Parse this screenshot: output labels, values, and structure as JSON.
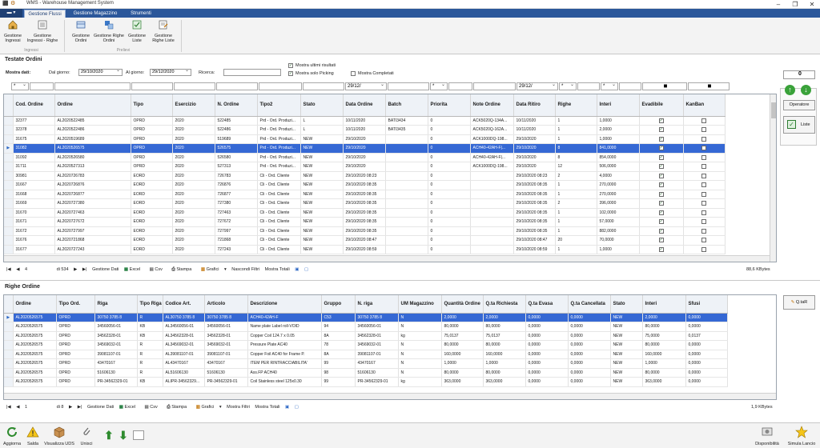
{
  "window": {
    "title": "WMS - Warehouse Management System"
  },
  "tabs": [
    {
      "label": "Gestione Flussi",
      "selected": true
    },
    {
      "label": "Gestione Magazzino",
      "selected": false
    },
    {
      "label": "Strumenti",
      "selected": false
    }
  ],
  "ribbon": {
    "groups": [
      {
        "label": "Ingressi"
      },
      {
        "label": "Prelievi"
      }
    ],
    "buttons": [
      {
        "label": "Gestione Ingressi",
        "icon": "home-icon"
      },
      {
        "label": "Gestione Ingressi - Righe",
        "icon": "list-icon"
      },
      {
        "label": "Gestione Ordini",
        "icon": "orders-icon"
      },
      {
        "label": "Gestione Righe Ordini",
        "icon": "order-lines-icon"
      },
      {
        "label": "Gestione Liste",
        "icon": "checklist-icon"
      },
      {
        "label": "Gestione Righe Liste",
        "icon": "list-lines-icon"
      }
    ]
  },
  "filters": {
    "section_title": "Testate Ordini",
    "mostra_dati": "Mostra dati:",
    "dal_label": "Dal giorno:",
    "dal_value": "29/10/2020",
    "al_label": "Al giorno:",
    "al_value": "29/12/2020",
    "ricerca_label": "Ricerca:",
    "ricerca_value": "",
    "ultimi": "Mostra ultimi risultati",
    "solo_picking": "Mostra solo Picking",
    "completati": "Mostra Completati",
    "ultimi_checked": true,
    "solo_picking_checked": true,
    "completati_checked": false,
    "row_ops": [
      "*",
      "*",
      "*"
    ],
    "row_dates": [
      "29/12/",
      "29/12/"
    ]
  },
  "side": {
    "counter": "0",
    "operatore": "Operatore",
    "liste": "Liste",
    "qtar": "Q.taR"
  },
  "orders": {
    "columns": [
      "Cod. Ordine",
      "Ordine",
      "Tipo",
      "Esercizio",
      "N. Ordine",
      "Tipo2",
      "Stato",
      "Data Ordine",
      "Batch",
      "Priorita",
      "Note Ordine",
      "Data Ritiro",
      "Righe",
      "Interi",
      "Evadibile",
      "KanBan"
    ],
    "rows": [
      [
        "32377",
        "AL2020522485",
        "OPRD",
        "2020",
        "522485",
        "Prd - Ord. Produzi...",
        "L",
        "10/11/2020",
        "BATI3434",
        "0",
        "ACK5020Q-134A...",
        "10/11/2020",
        "1",
        "1,0000",
        true,
        false
      ],
      [
        "32378",
        "AL2020522486",
        "OPRD",
        "2020",
        "522486",
        "Prd - Ord. Produzi...",
        "L",
        "10/11/2020",
        "BATI3435",
        "0",
        "ACK5020Q-162A...",
        "10/11/2020",
        "1",
        "2,0000",
        true,
        false
      ],
      [
        "31675",
        "AL2020519689",
        "OPRD",
        "2020",
        "519689",
        "Prd - Ord. Produzi...",
        "NEW",
        "29/10/2020",
        "",
        "0",
        "ACK1000DQ-198...",
        "29/10/2020",
        "1",
        "1,0000",
        true,
        false
      ],
      [
        "31082",
        "AL2020526575",
        "OPRD",
        "2020",
        "526575",
        "Prd - Ord. Produzi...",
        "NEW",
        "29/10/2020",
        "",
        "0",
        "ACH40-42AH-F|...",
        "29/10/2020",
        "8",
        "841,0000",
        true,
        false
      ],
      [
        "31092",
        "AL2020526580",
        "OPRD",
        "2020",
        "526580",
        "Prd - Ord. Produzi...",
        "NEW",
        "29/10/2020",
        "",
        "0",
        "ACH40-42AH-F|...",
        "29/10/2020",
        "8",
        "854,0000",
        true,
        false
      ],
      [
        "31711",
        "AL2020527313",
        "OPRD",
        "2020",
        "527313",
        "Prd - Ord. Produzi...",
        "NEW",
        "29/10/2020",
        "",
        "0",
        "ACK1000DQ-198...",
        "29/10/2020",
        "12",
        "506,0000",
        true,
        false
      ],
      [
        "30981",
        "AL2020726783",
        "EORD",
        "2020",
        "726783",
        "Cli - Ord. Cliente",
        "NEW",
        "29/10/2020 08:23",
        "",
        "0",
        "",
        "29/10/2020 08:23",
        "2",
        "4,0000",
        true,
        false
      ],
      [
        "31667",
        "AL2020726876",
        "EORD",
        "2020",
        "726876",
        "Cli - Ord. Cliente",
        "NEW",
        "29/10/2020 08:35",
        "",
        "0",
        "",
        "29/10/2020 08:35",
        "1",
        "270,0000",
        true,
        false
      ],
      [
        "31668",
        "AL2020726877",
        "EORD",
        "2020",
        "726877",
        "Cli - Ord. Cliente",
        "NEW",
        "29/10/2020 08:35",
        "",
        "0",
        "",
        "29/10/2020 08:35",
        "1",
        "270,0000",
        true,
        false
      ],
      [
        "31669",
        "AL2020727380",
        "EORD",
        "2020",
        "727380",
        "Cli - Ord. Cliente",
        "NEW",
        "29/10/2020 08:35",
        "",
        "0",
        "",
        "29/10/2020 08:35",
        "2",
        "396,0000",
        true,
        false
      ],
      [
        "31670",
        "AL2020727463",
        "EORD",
        "2020",
        "727463",
        "Cli - Ord. Cliente",
        "NEW",
        "29/10/2020 08:35",
        "",
        "0",
        "",
        "29/10/2020 08:35",
        "1",
        "102,0000",
        true,
        false
      ],
      [
        "31671",
        "AL2020727672",
        "EORD",
        "2020",
        "727672",
        "Cli - Ord. Cliente",
        "NEW",
        "29/10/2020 08:35",
        "",
        "0",
        "",
        "29/10/2020 08:35",
        "1",
        "57,0000",
        true,
        false
      ],
      [
        "31672",
        "AL2020727997",
        "EORD",
        "2020",
        "727997",
        "Cli - Ord. Cliente",
        "NEW",
        "29/10/2020 08:35",
        "",
        "0",
        "",
        "29/10/2020 08:35",
        "1",
        "882,0000",
        true,
        false
      ],
      [
        "31676",
        "AL2020721868",
        "EORD",
        "2020",
        "721868",
        "Cli - Ord. Cliente",
        "NEW",
        "29/10/2020 08:47",
        "",
        "0",
        "",
        "29/10/2020 08:47",
        "20",
        "70,0000",
        true,
        false
      ],
      [
        "31677",
        "AL2020727243",
        "EORD",
        "2020",
        "727243",
        "Cli - Ord. Cliente",
        "NEW",
        "29/10/2020 08:59",
        "",
        "0",
        "",
        "29/10/2020 08:59",
        "1",
        "1,0000",
        true,
        false
      ]
    ],
    "selected_index": 3
  },
  "orders_nav": {
    "page": "4",
    "of": "di 534",
    "items": [
      "Gestione Dati",
      "Excel",
      "Csv",
      "Stampa",
      "Grafici",
      "Nascondi Filtri",
      "Mostra Totali"
    ],
    "size": "88,6 KBytes"
  },
  "lines": {
    "section_title": "Righe Ordine",
    "columns": [
      "Ordine",
      "Tipo Ord.",
      "Riga",
      "Tipo Riga",
      "Codice Art.",
      "Articolo",
      "Descrizione",
      "Gruppo",
      "N. riga",
      "UM Magazzino",
      "Quantità Ordine",
      "Q.ta Richiesta",
      "Q.ta Evasa",
      "Q.ta Cancellata",
      "Stato",
      "Interi",
      "Sfusi"
    ],
    "rows": [
      [
        "AL2020526575",
        "OPRD",
        "30750 3785 8",
        "R",
        "AL30750 3785 8",
        "30750 3785 8",
        "ACH40-42AH-F",
        "C53",
        "30750 3785 8",
        "N",
        "2,0000",
        "2,0000",
        "0,0000",
        "0,0000",
        "NEW",
        "2,0000",
        "0,0000"
      ],
      [
        "AL2020526575",
        "OPRD",
        "34560056-01",
        "KB",
        "AL34560056-01",
        "34560056-01",
        "Name plate Label roll-VOID",
        "94",
        "34560056-01",
        "N",
        "80,0000",
        "80,0000",
        "0,0000",
        "0,0000",
        "NEW",
        "80,0000",
        "0,0000"
      ],
      [
        "AL2020526575",
        "OPRD",
        "34562328-01",
        "KB",
        "AL34562328-01",
        "34562328-01",
        "Copper Coil 124.7 x 0.05",
        "8A",
        "34562328-01",
        "kg",
        "75,0137",
        "75,0137",
        "0,0000",
        "0,0000",
        "NEW",
        "75,0000",
        "0,0137"
      ],
      [
        "AL2020526575",
        "OPRD",
        "34569032-01",
        "R",
        "AL34569032-01",
        "34569032-01",
        "Pressure Plate   AC40",
        "78",
        "34569032-01",
        "N",
        "80,0000",
        "80,0000",
        "0,0000",
        "0,0000",
        "NEW",
        "80,0000",
        "0,0000"
      ],
      [
        "AL2020526575",
        "OPRD",
        "39081107-01",
        "R",
        "AL39081107-01",
        "39081107-01",
        "Copper Foil AC40 for Frame P.",
        "8A",
        "39081107-01",
        "N",
        "160,0000",
        "160,0000",
        "0,0000",
        "0,0000",
        "NEW",
        "160,0000",
        "0,0000"
      ],
      [
        "AL2020526575",
        "OPRD",
        "43470167",
        "R",
        "AL43470167",
        "43470167",
        "ITEM PER RINTRACCIABILITA'",
        "99",
        "43470167",
        "N",
        "1,0000",
        "1,0000",
        "0,0000",
        "0,0000",
        "NEW",
        "1,0000",
        "0,0000"
      ],
      [
        "AL2020526575",
        "OPRD",
        "51606130",
        "R",
        "AL51606130",
        "51606130",
        "Ass.FP ACH40",
        "98",
        "51606130",
        "N",
        "80,0000",
        "80,0000",
        "0,0000",
        "0,0000",
        "NEW",
        "80,0000",
        "0,0000"
      ],
      [
        "AL2020526575",
        "OPRD",
        "PR-34562329-01",
        "KB",
        "ALIPR-34562329...",
        "PR-34562329-01",
        "Coil Stainless steel 125x0.30",
        "99",
        "PR-34562329-01",
        "kg",
        "363,0000",
        "363,0000",
        "0,0000",
        "0,0000",
        "NEW",
        "363,0000",
        "0,0000"
      ]
    ],
    "selected_index": 0
  },
  "lines_nav": {
    "page": "1",
    "of": "di 8",
    "items": [
      "Gestione Dati",
      "Excel",
      "Csv",
      "Stampa",
      "Grafici",
      "Mostra Filtri",
      "Mostra Totali"
    ],
    "size": "1,9 KBytes"
  },
  "bottom": {
    "left": [
      {
        "label": "Aggiorna",
        "icon": "refresh-icon"
      },
      {
        "label": "Salda",
        "icon": "warning-icon"
      },
      {
        "label": "Visualizza UDS",
        "icon": "box-icon"
      },
      {
        "label": "Unisci",
        "icon": "paperclip-icon"
      }
    ],
    "right": [
      {
        "label": "Disponibilità",
        "icon": "availability-icon"
      },
      {
        "label": "Simula Lancio",
        "icon": "star-icon"
      }
    ]
  }
}
